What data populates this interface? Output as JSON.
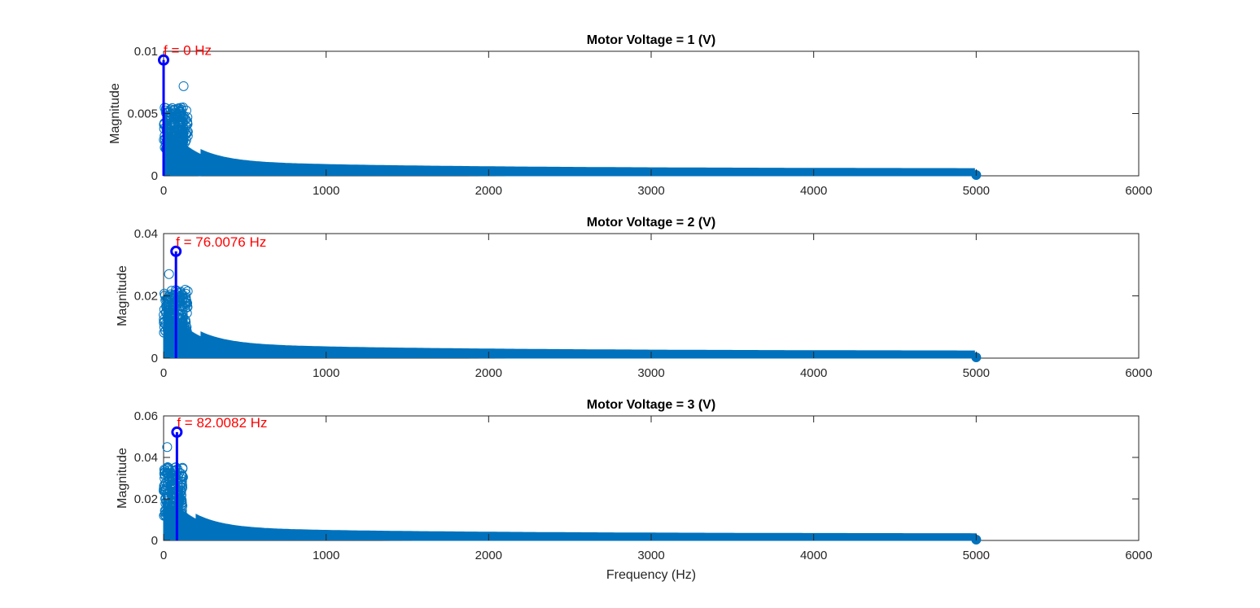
{
  "colors": {
    "stem": "#0072bd",
    "peak_stem": "#0000ff",
    "peak_label": "#ff0000",
    "axes": "#262626"
  },
  "xlabel": "Frequency (Hz)",
  "chart_data": [
    {
      "type": "stem",
      "title": "Motor Voltage = 1 (V)",
      "xlabel": "",
      "ylabel": "Magnitude",
      "xlim": [
        0,
        6000
      ],
      "ylim": [
        0,
        0.01
      ],
      "xticks": [
        0,
        1000,
        2000,
        3000,
        4000,
        5000,
        6000
      ],
      "xtick_labels": [
        "0",
        "1000",
        "2000",
        "3000",
        "4000",
        "5000",
        "6000"
      ],
      "yticks": [
        0,
        0.005,
        0.01
      ],
      "ytick_labels": [
        "0",
        "0.005",
        "0.01"
      ],
      "grid": false,
      "spectrum": {
        "f_max": 5000,
        "base_peak": 0.0055,
        "max_local": 0.0072,
        "tail": 0.0002,
        "knee": 150
      },
      "peak": {
        "x": 0,
        "y": 0.0093,
        "label": "f = 0 Hz"
      }
    },
    {
      "type": "stem",
      "title": "Motor Voltage = 2 (V)",
      "xlabel": "",
      "ylabel": "Magnitude",
      "xlim": [
        0,
        6000
      ],
      "ylim": [
        0,
        0.04
      ],
      "xticks": [
        0,
        1000,
        2000,
        3000,
        4000,
        5000,
        6000
      ],
      "xtick_labels": [
        "0",
        "1000",
        "2000",
        "3000",
        "4000",
        "5000",
        "6000"
      ],
      "yticks": [
        0,
        0.02,
        0.04
      ],
      "ytick_labels": [
        "0",
        "0.02",
        "0.04"
      ],
      "grid": false,
      "spectrum": {
        "f_max": 5000,
        "base_peak": 0.022,
        "max_local": 0.027,
        "tail": 0.0008,
        "knee": 150
      },
      "peak": {
        "x": 76.0076,
        "y": 0.0343,
        "label": "f = 76.0076 Hz"
      }
    },
    {
      "type": "stem",
      "title": "Motor Voltage = 3 (V)",
      "xlabel": "Frequency (Hz)",
      "ylabel": "Magnitude",
      "xlim": [
        0,
        6000
      ],
      "ylim": [
        0,
        0.06
      ],
      "xticks": [
        0,
        1000,
        2000,
        3000,
        4000,
        5000,
        6000
      ],
      "xtick_labels": [
        "0",
        "1000",
        "2000",
        "3000",
        "4000",
        "5000",
        "6000"
      ],
      "yticks": [
        0,
        0.02,
        0.04,
        0.06
      ],
      "ytick_labels": [
        "0",
        "0.02",
        "0.04",
        "0.06"
      ],
      "grid": false,
      "spectrum": {
        "f_max": 5000,
        "base_peak": 0.036,
        "max_local": 0.045,
        "tail": 0.001,
        "knee": 120
      },
      "peak": {
        "x": 82.0082,
        "y": 0.0522,
        "label": "f = 82.0082 Hz"
      }
    }
  ]
}
